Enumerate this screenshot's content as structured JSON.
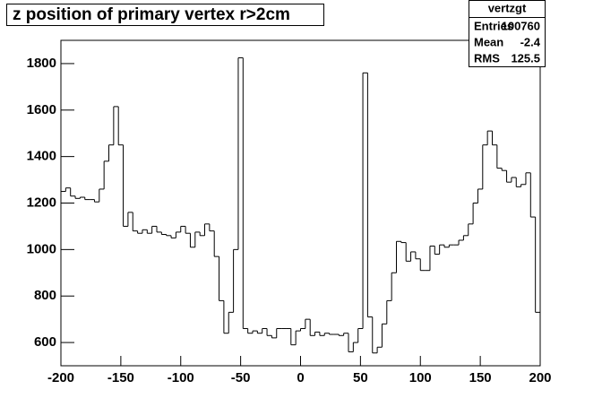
{
  "chart_data": {
    "type": "histogram",
    "title": "z position of primary vertex r>2cm",
    "bins": [
      -200,
      -196,
      -192,
      -188,
      -184,
      -180,
      -176,
      -172,
      -168,
      -164,
      -160,
      -156,
      -152,
      -148,
      -144,
      -140,
      -136,
      -132,
      -128,
      -124,
      -120,
      -116,
      -112,
      -108,
      -104,
      -100,
      -96,
      -92,
      -88,
      -84,
      -80,
      -76,
      -72,
      -68,
      -64,
      -60,
      -56,
      -52,
      -48,
      -44,
      -40,
      -36,
      -32,
      -28,
      -24,
      -20,
      -16,
      -12,
      -8,
      -4,
      0,
      4,
      8,
      12,
      16,
      20,
      24,
      28,
      32,
      36,
      40,
      44,
      48,
      52,
      56,
      60,
      64,
      68,
      72,
      76,
      80,
      84,
      88,
      92,
      96,
      100,
      104,
      108,
      112,
      116,
      120,
      124,
      128,
      132,
      136,
      140,
      144,
      148,
      152,
      156,
      160,
      164,
      168,
      172,
      176,
      180,
      184,
      188,
      192,
      196,
      200
    ],
    "values": [
      1250,
      1265,
      1230,
      1220,
      1225,
      1215,
      1215,
      1205,
      1260,
      1380,
      1450,
      1615,
      1450,
      1100,
      1160,
      1080,
      1070,
      1085,
      1070,
      1100,
      1075,
      1065,
      1060,
      1050,
      1075,
      1100,
      1070,
      1010,
      1075,
      1060,
      1110,
      1080,
      970,
      780,
      640,
      730,
      1000,
      1825,
      660,
      640,
      650,
      640,
      660,
      630,
      620,
      660,
      660,
      660,
      590,
      650,
      660,
      700,
      630,
      645,
      630,
      640,
      635,
      635,
      630,
      640,
      560,
      600,
      660,
      1760,
      710,
      555,
      580,
      680,
      780,
      900,
      1035,
      1030,
      950,
      990,
      960,
      910,
      910,
      1015,
      980,
      1020,
      1010,
      1020,
      1020,
      1040,
      1060,
      1110,
      1200,
      1260,
      1450,
      1510,
      1450,
      1350,
      1340,
      1290,
      1310,
      1270,
      1280,
      1330,
      1140,
      730
    ],
    "color": "#000000",
    "xlim": [
      -200,
      200
    ],
    "xticks": [
      -200,
      -150,
      -100,
      -50,
      0,
      50,
      100,
      150,
      200
    ],
    "ylim": [
      500,
      1900
    ],
    "yticks": [
      600,
      800,
      1000,
      1200,
      1400,
      1600,
      1800
    ],
    "stats": {
      "name": "vertzgt",
      "labels": [
        "Entries",
        "Mean",
        "RMS"
      ],
      "values": [
        100760,
        -2.4,
        125.5
      ]
    }
  }
}
